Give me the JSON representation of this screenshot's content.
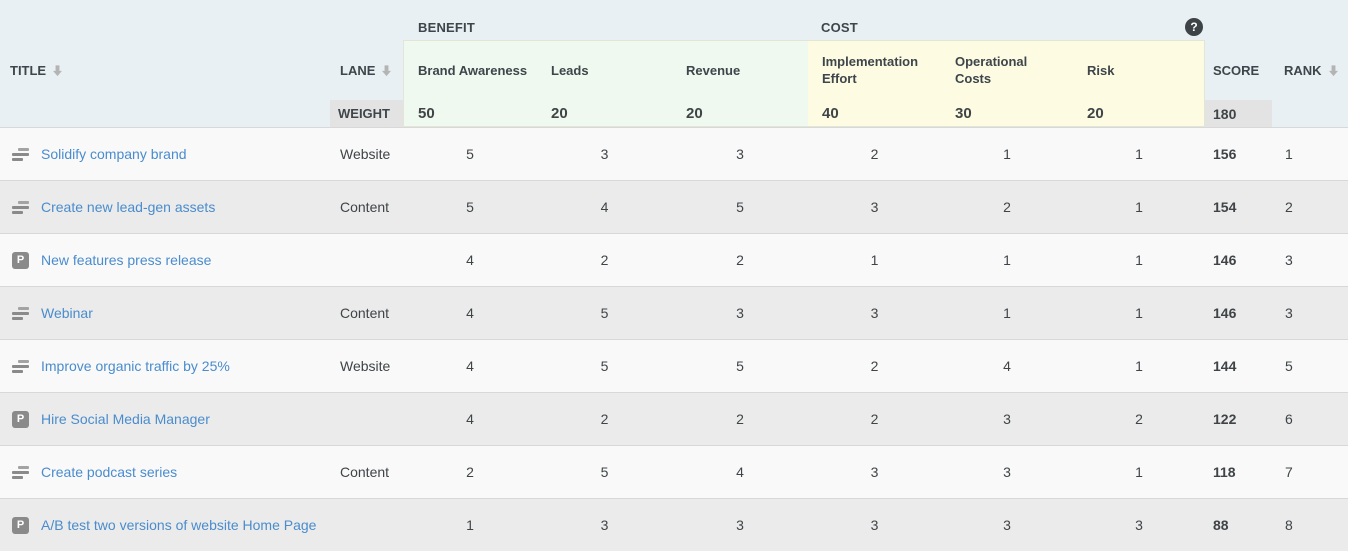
{
  "colors": {
    "header_bg": "#e8f0f3",
    "benefit_bg": "#eff9ef",
    "cost_bg": "#fdfce3",
    "panel_border": "#e2e6d6",
    "weight_bg": "#e3e3e3",
    "row_light": "#f9f9f9",
    "row_dark": "#ebebeb",
    "row_border": "#d8d8d8",
    "link_blue": "#4a8ccd",
    "text_dark": "#3f4447",
    "text_header": "#3e454b",
    "icon_gray": "#8a8a8a",
    "help_bg": "#3e4347",
    "sort_arrow": "#b4b4b4"
  },
  "header": {
    "benefit_group_label": "BENEFIT",
    "cost_group_label": "COST",
    "help_glyph": "?",
    "title_label": "TITLE",
    "lane_label": "LANE",
    "benefit_columns": [
      "Brand Awareness",
      "Leads",
      "Revenue"
    ],
    "cost_columns": [
      "Implementation Effort",
      "Operational Costs",
      "Risk"
    ],
    "score_label": "SCORE",
    "rank_label": "RANK",
    "weight_label": "WEIGHT",
    "weights": [
      "50",
      "20",
      "20",
      "40",
      "30",
      "20"
    ],
    "total_weight": "180"
  },
  "rows": [
    {
      "icon": "epic",
      "title": "Solidify company brand",
      "lane": "Website",
      "ratings": [
        "5",
        "3",
        "3",
        "2",
        "1",
        "1"
      ],
      "score": "156",
      "rank": "1"
    },
    {
      "icon": "epic",
      "title": "Create new lead-gen assets",
      "lane": "Content",
      "ratings": [
        "5",
        "4",
        "5",
        "3",
        "2",
        "1"
      ],
      "score": "154",
      "rank": "2"
    },
    {
      "icon": "p",
      "title": "New features press release",
      "lane": "",
      "ratings": [
        "4",
        "2",
        "2",
        "1",
        "1",
        "1"
      ],
      "score": "146",
      "rank": "3"
    },
    {
      "icon": "epic",
      "title": "Webinar",
      "lane": "Content",
      "ratings": [
        "4",
        "5",
        "3",
        "3",
        "1",
        "1"
      ],
      "score": "146",
      "rank": "3"
    },
    {
      "icon": "epic",
      "title": "Improve organic traffic by 25%",
      "lane": "Website",
      "ratings": [
        "4",
        "5",
        "5",
        "2",
        "4",
        "1"
      ],
      "score": "144",
      "rank": "5"
    },
    {
      "icon": "p",
      "title": "Hire Social Media Manager",
      "lane": "",
      "ratings": [
        "4",
        "2",
        "2",
        "2",
        "3",
        "2"
      ],
      "score": "122",
      "rank": "6"
    },
    {
      "icon": "epic",
      "title": "Create podcast series",
      "lane": "Content",
      "ratings": [
        "2",
        "5",
        "4",
        "3",
        "3",
        "1"
      ],
      "score": "118",
      "rank": "7"
    },
    {
      "icon": "p",
      "title": "A/B test two versions of website Home Page",
      "lane": "",
      "ratings": [
        "1",
        "3",
        "3",
        "3",
        "3",
        "3"
      ],
      "score": "88",
      "rank": "8"
    }
  ]
}
